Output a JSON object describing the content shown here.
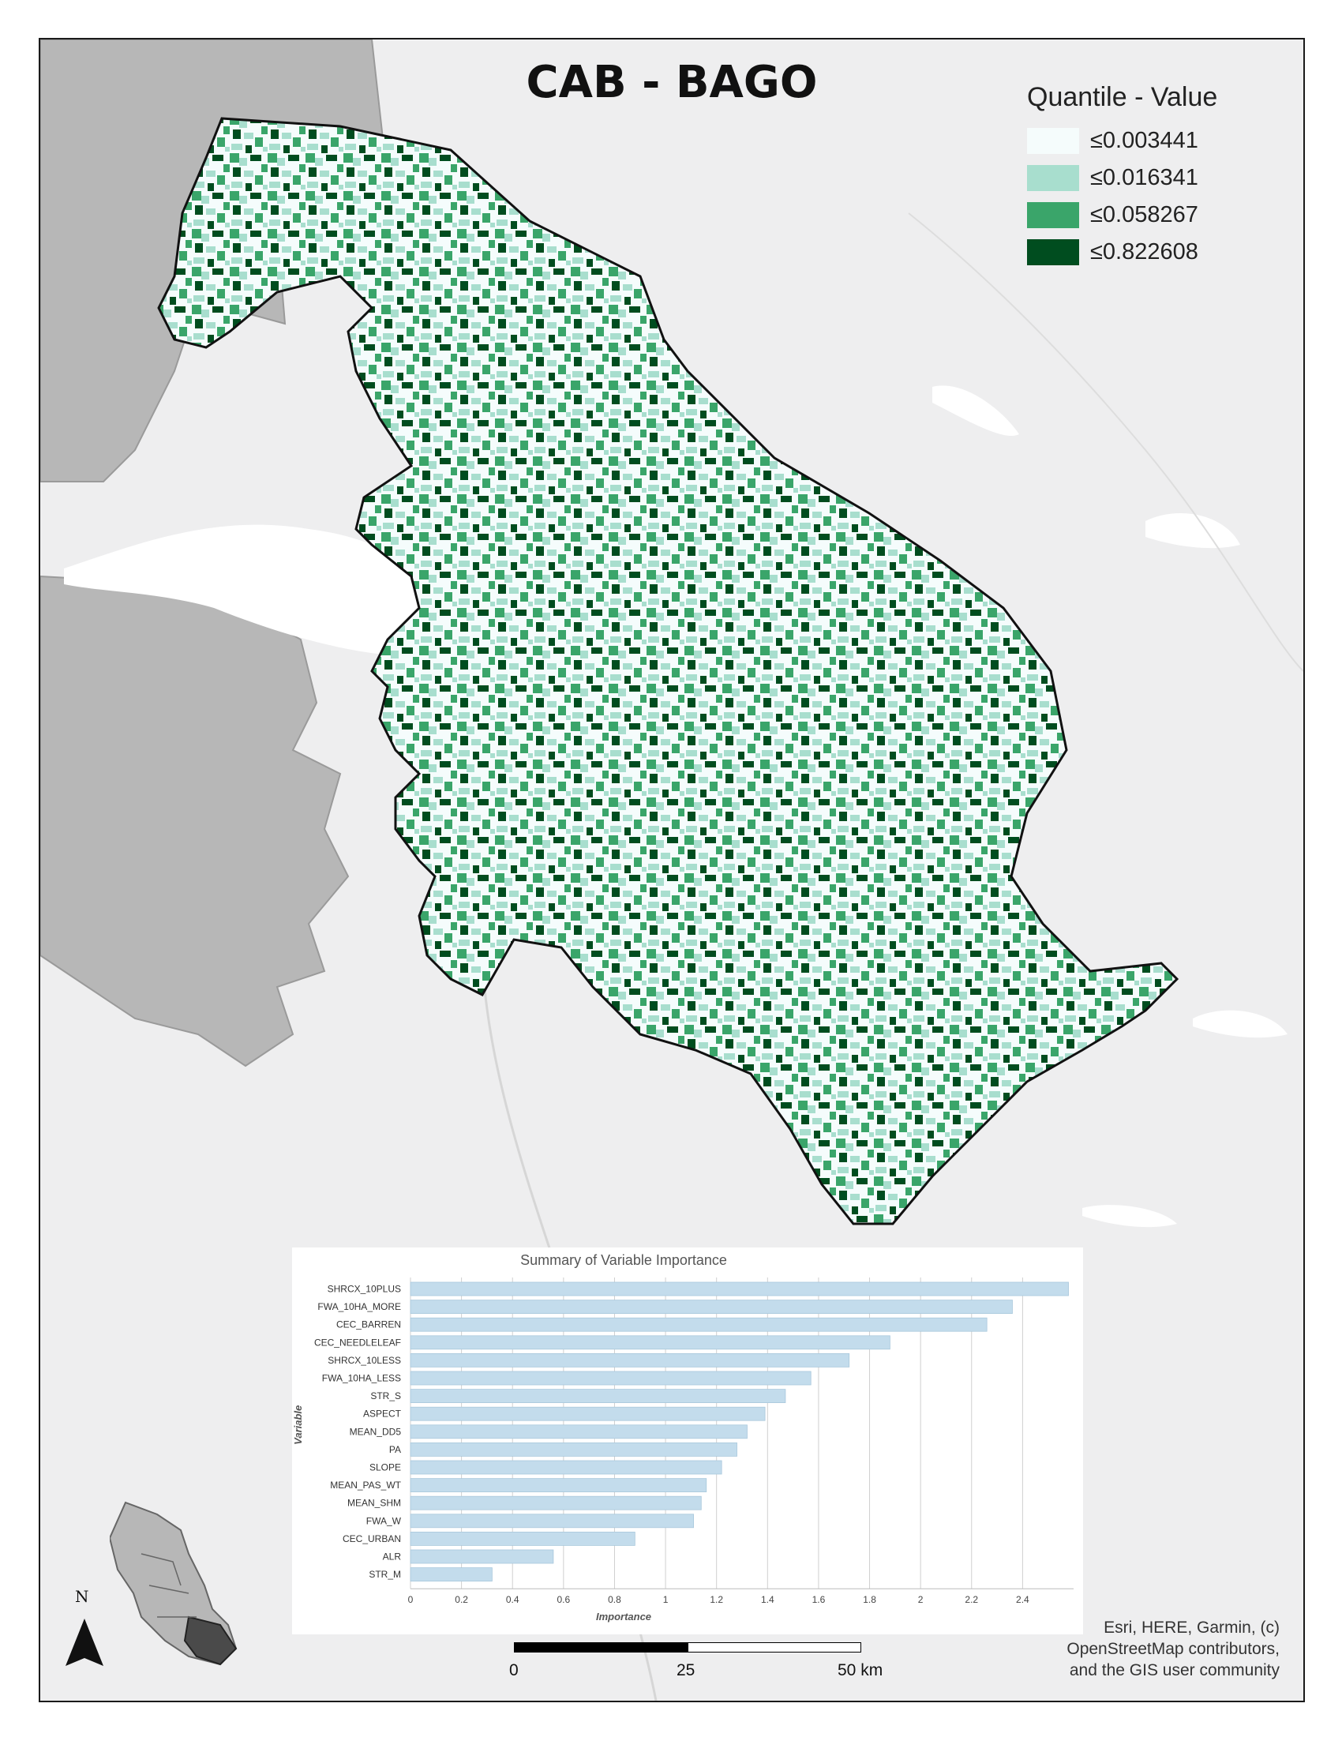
{
  "title": "CAB - BAGO",
  "legend": {
    "title": "Quantile - Value",
    "items": [
      {
        "label": "≤0.003441",
        "color": "#f5fcfc"
      },
      {
        "label": "≤0.016341",
        "color": "#a8dece"
      },
      {
        "label": "≤0.058267",
        "color": "#3aa56a"
      },
      {
        "label": "≤0.822608",
        "color": "#004d1f"
      }
    ]
  },
  "attribution": [
    "Esri, HERE, Garmin, (c)",
    "OpenStreetMap contributors,",
    "and the GIS user community"
  ],
  "scale_bar": {
    "labels": [
      "0",
      "25",
      "50 km"
    ]
  },
  "north_arrow": {
    "label": "N"
  },
  "colors": {
    "land": "#eeeeef",
    "water": "#ffffff",
    "grey_region": "#b7b7b7",
    "bar": "#c3dcec",
    "gridline": "#cfcfcf"
  },
  "chart_data": {
    "type": "bar",
    "orientation": "horizontal",
    "title": "Summary of Variable Importance",
    "xlabel": "Importance",
    "ylabel": "Variable",
    "xlim": [
      0,
      2.6
    ],
    "xticks": [
      "0",
      "0.2",
      "0.4",
      "0.6",
      "0.8",
      "1",
      "1.2",
      "1.4",
      "1.6",
      "1.8",
      "2",
      "2.2",
      "2.4"
    ],
    "grid": true,
    "categories": [
      "SHRCX_10PLUS",
      "FWA_10HA_MORE",
      "CEC_BARREN",
      "CEC_NEEDLELEAF",
      "SHRCX_10LESS",
      "FWA_10HA_LESS",
      "STR_S",
      "ASPECT",
      "MEAN_DD5",
      "PA",
      "SLOPE",
      "MEAN_PAS_WT",
      "MEAN_SHM",
      "FWA_W",
      "CEC_URBAN",
      "ALR",
      "STR_M"
    ],
    "values": [
      2.58,
      2.36,
      2.26,
      1.88,
      1.72,
      1.57,
      1.47,
      1.39,
      1.32,
      1.28,
      1.22,
      1.16,
      1.14,
      1.11,
      0.88,
      0.56,
      0.32
    ]
  }
}
